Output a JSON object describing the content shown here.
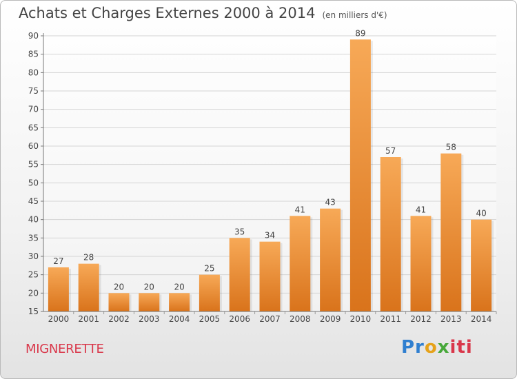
{
  "chart_data": {
    "type": "bar",
    "title": "Achats et Charges Externes 2000 à 2014",
    "subtitle": "(en milliers d'€)",
    "categories": [
      "2000",
      "2001",
      "2002",
      "2003",
      "2004",
      "2005",
      "2006",
      "2007",
      "2008",
      "2009",
      "2010",
      "2011",
      "2012",
      "2013",
      "2014"
    ],
    "values": [
      27,
      28,
      20,
      20,
      20,
      25,
      35,
      34,
      41,
      43,
      89,
      57,
      41,
      58,
      40
    ],
    "ylim": [
      15,
      90
    ],
    "yticks": [
      15,
      20,
      25,
      30,
      35,
      40,
      45,
      50,
      55,
      60,
      65,
      70,
      75,
      80,
      85,
      90
    ],
    "grid": true,
    "legend": "none",
    "bar_color_top": "#f7a957",
    "bar_color_bottom": "#d9731b"
  },
  "footer": {
    "commune": "MIGNERETTE",
    "logo_parts": [
      "Pr",
      "o",
      "x",
      "iti"
    ]
  }
}
